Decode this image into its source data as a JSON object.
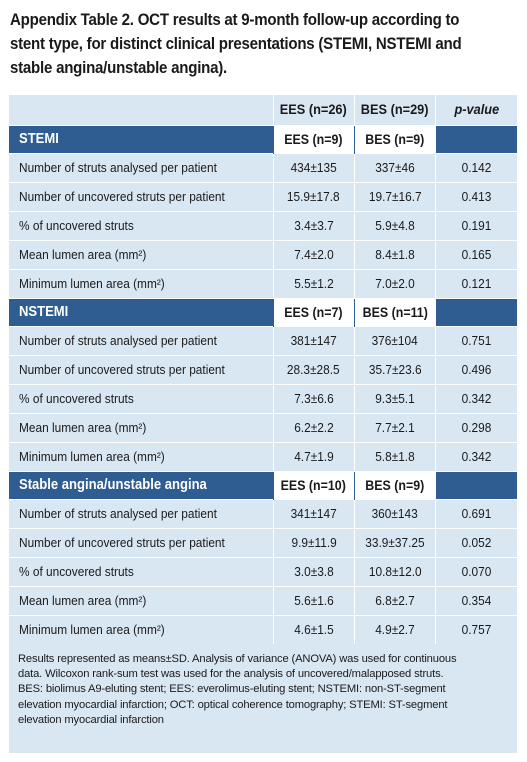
{
  "caption": {
    "lines": [
      "Appendix Table 2. OCT results at 9-month follow-up according to",
      "stent type, for distinct clinical presentations (STEMI, NSTEMI and",
      "stable angina/unstable angina)."
    ]
  },
  "table": {
    "header": {
      "col1": "EES (n=26)",
      "col2": "BES (n=29)",
      "col3": "p-value"
    },
    "sections": [
      {
        "title": "STEMI",
        "ees": "EES (n=9)",
        "bes": "BES (n=9)",
        "rows": [
          {
            "label": "Number of struts analysed per patient",
            "ees": "434±135",
            "bes": "337±46",
            "p": "0.142"
          },
          {
            "label": "Number of uncovered struts per patient",
            "ees": "15.9±17.8",
            "bes": "19.7±16.7",
            "p": "0.413"
          },
          {
            "label": "% of uncovered struts",
            "ees": "3.4±3.7",
            "bes": "5.9±4.8",
            "p": "0.191"
          },
          {
            "label": "Mean lumen area (mm²)",
            "ees": "7.4±2.0",
            "bes": "8.4±1.8",
            "p": "0.165"
          },
          {
            "label": "Minimum lumen area (mm²)",
            "ees": "5.5±1.2",
            "bes": "7.0±2.0",
            "p": "0.121"
          }
        ]
      },
      {
        "title": "NSTEMI",
        "ees": "EES (n=7)",
        "bes": "BES (n=11)",
        "rows": [
          {
            "label": "Number of struts analysed per patient",
            "ees": "381±147",
            "bes": "376±104",
            "p": "0.751"
          },
          {
            "label": "Number of uncovered struts per patient",
            "ees": "28.3±28.5",
            "bes": "35.7±23.6",
            "p": "0.496"
          },
          {
            "label": "% of uncovered struts",
            "ees": "7.3±6.6",
            "bes": "9.3±5.1",
            "p": "0.342"
          },
          {
            "label": "Mean lumen area (mm²)",
            "ees": "6.2±2.2",
            "bes": "7.7±2.1",
            "p": "0.298"
          },
          {
            "label": "Minimum lumen area (mm²)",
            "ees": "4.7±1.9",
            "bes": "5.8±1.8",
            "p": "0.342"
          }
        ]
      },
      {
        "title": "Stable angina/unstable angina",
        "ees": "EES (n=10)",
        "bes": "BES (n=9)",
        "rows": [
          {
            "label": "Number of struts analysed per patient",
            "ees": "341±147",
            "bes": "360±143",
            "p": "0.691"
          },
          {
            "label": "Number of uncovered struts per patient",
            "ees": "9.9±11.9",
            "bes": "33.9±37.25",
            "p": "0.052"
          },
          {
            "label": "% of uncovered struts",
            "ees": "3.0±3.8",
            "bes": "10.8±12.0",
            "p": "0.070"
          },
          {
            "label": "Mean lumen area (mm²)",
            "ees": "5.6±1.6",
            "bes": "6.8±2.7",
            "p": "0.354"
          },
          {
            "label": "Minimum lumen area (mm²)",
            "ees": "4.6±1.5",
            "bes": "4.9±2.7",
            "p": "0.757"
          }
        ]
      }
    ]
  },
  "footnote": {
    "lines": [
      "Results represented as means±SD. Analysis of variance (ANOVA) was used for continuous",
      "data. Wilcoxon rank-sum test was used for the analysis of uncovered/malapposed struts.",
      "BES: biolimus A9-eluting stent; EES: everolimus-eluting stent; NSTEMI: non-ST-segment",
      "elevation myocardial infarction; OCT: optical coherence tomography; STEMI: ST-segment",
      "elevation myocardial infarction"
    ]
  },
  "colors": {
    "header_blue": "#2f5d92",
    "cell_bg": "#d9e7f3"
  }
}
